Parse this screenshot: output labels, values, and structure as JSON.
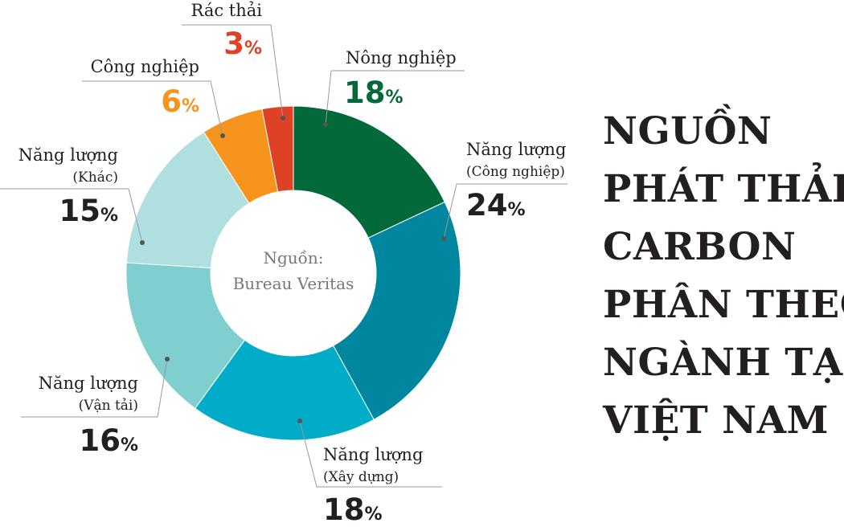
{
  "title_lines": [
    "NGUỒN",
    "PHÁT THẢI",
    "CARBON",
    "PHÂN THEO",
    "NGÀNH TẠI",
    "VIỆT NAM"
  ],
  "center_text": [
    "Nguồn:",
    "Bureau Veritas"
  ],
  "chart_data": {
    "type": "pie",
    "donut": true,
    "slices": [
      {
        "label": "Nông nghiệp",
        "sublabel": "",
        "value": 18,
        "color": "#04693a",
        "pct_color": "#04693a"
      },
      {
        "label": "Năng lượng",
        "sublabel": "(Công nghiệp)",
        "value": 24,
        "color": "#00869f",
        "pct_color": "#231f20"
      },
      {
        "label": "Năng lượng",
        "sublabel": "(Xây dựng)",
        "value": 18,
        "color": "#00acc8",
        "pct_color": "#231f20"
      },
      {
        "label": "Năng lượng",
        "sublabel": "(Vận tải)",
        "value": 16,
        "color": "#7fcfcf",
        "pct_color": "#231f20"
      },
      {
        "label": "Năng lượng",
        "sublabel": "(Khác)",
        "value": 15,
        "color": "#b0dfdf",
        "pct_color": "#231f20"
      },
      {
        "label": "Công nghiệp",
        "sublabel": "",
        "value": 6,
        "color": "#f7941d",
        "pct_color": "#f7941d"
      },
      {
        "label": "Rác thải",
        "sublabel": "",
        "value": 3,
        "color": "#de4126",
        "pct_color": "#de4126"
      }
    ],
    "percent_symbol": "%"
  }
}
